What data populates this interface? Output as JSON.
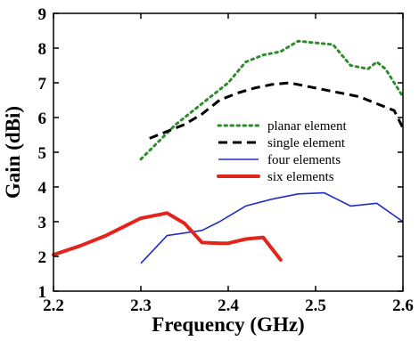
{
  "chart_data": {
    "type": "line",
    "xlabel": "Frequency (GHz)",
    "ylabel": "Gain (dBi)",
    "xlim": [
      2.2,
      2.6
    ],
    "ylim": [
      1,
      9
    ],
    "xticks": [
      "2.2",
      "2.3",
      "2.4",
      "2.5",
      "2.6"
    ],
    "yticks": [
      "1",
      "2",
      "3",
      "4",
      "5",
      "6",
      "7",
      "8",
      "9"
    ],
    "grid": false,
    "legend_position": "right-center",
    "series": [
      {
        "name": "planar element",
        "color": "#2e8b2e",
        "style": "dotted",
        "x": [
          2.3,
          2.32,
          2.34,
          2.36,
          2.38,
          2.4,
          2.42,
          2.44,
          2.46,
          2.48,
          2.5,
          2.52,
          2.54,
          2.56,
          2.57,
          2.58,
          2.6
        ],
        "y": [
          4.8,
          5.3,
          5.8,
          6.2,
          6.6,
          7.0,
          7.6,
          7.8,
          7.9,
          8.2,
          8.15,
          8.1,
          7.5,
          7.4,
          7.6,
          7.4,
          6.6
        ]
      },
      {
        "name": "single element",
        "color": "#000000",
        "style": "dashed",
        "x": [
          2.31,
          2.33,
          2.35,
          2.37,
          2.39,
          2.41,
          2.43,
          2.45,
          2.47,
          2.49,
          2.51,
          2.53,
          2.55,
          2.57,
          2.59,
          2.6
        ],
        "y": [
          5.4,
          5.6,
          5.8,
          6.1,
          6.5,
          6.7,
          6.85,
          6.95,
          7.0,
          6.9,
          6.8,
          6.7,
          6.6,
          6.4,
          6.2,
          5.7
        ]
      },
      {
        "name": "four elements",
        "color": "#1f2ec8",
        "style": "solid",
        "x": [
          2.3,
          2.33,
          2.37,
          2.39,
          2.42,
          2.45,
          2.48,
          2.51,
          2.54,
          2.57,
          2.6
        ],
        "y": [
          1.8,
          2.6,
          2.75,
          3.0,
          3.45,
          3.65,
          3.8,
          3.83,
          3.45,
          3.53,
          3.0
        ]
      },
      {
        "name": "six elements",
        "color": "#e3241b",
        "style": "solid-thick",
        "x": [
          2.2,
          2.23,
          2.26,
          2.28,
          2.3,
          2.31,
          2.33,
          2.35,
          2.37,
          2.39,
          2.4,
          2.42,
          2.44,
          2.46
        ],
        "y": [
          2.05,
          2.3,
          2.6,
          2.85,
          3.1,
          3.15,
          3.25,
          2.95,
          2.4,
          2.38,
          2.38,
          2.5,
          2.55,
          1.9
        ]
      }
    ]
  }
}
